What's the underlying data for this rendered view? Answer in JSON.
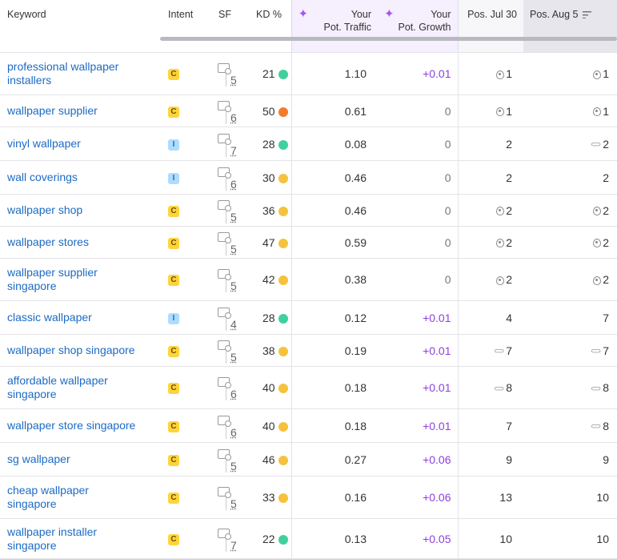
{
  "colors": {
    "easy": "#3fd19c",
    "medium": "#f5c33b",
    "hard": "#f47b2c",
    "link": "#1c6bc4",
    "growth": "#8e3ee0"
  },
  "headers": {
    "keyword": "Keyword",
    "intent": "Intent",
    "sf": "SF",
    "kd": "KD %",
    "traffic": [
      "Your",
      "Pot. Traffic"
    ],
    "growth": [
      "Your",
      "Pot. Growth"
    ],
    "pos1": "Pos. Jul 30",
    "pos2": "Pos. Aug 5"
  },
  "rows": [
    {
      "keyword": [
        "professional wallpaper",
        "installers"
      ],
      "intent": "C",
      "sf": "5",
      "kd": "21",
      "kdLevel": "easy",
      "traffic": "1.10",
      "growth": "+0.01",
      "pos1": "1",
      "pos1Icon": "pin",
      "pos2": "1",
      "pos2Icon": "pin"
    },
    {
      "keyword": [
        "wallpaper supplier"
      ],
      "intent": "C",
      "sf": "6",
      "kd": "50",
      "kdLevel": "hard",
      "traffic": "0.61",
      "growth": "0",
      "pos1": "1",
      "pos1Icon": "pin",
      "pos2": "1",
      "pos2Icon": "pin"
    },
    {
      "keyword": [
        "vinyl wallpaper"
      ],
      "intent": "I",
      "sf": "7",
      "kd": "28",
      "kdLevel": "easy",
      "traffic": "0.08",
      "growth": "0",
      "pos1": "2",
      "pos1Icon": "",
      "pos2": "2",
      "pos2Icon": "link"
    },
    {
      "keyword": [
        "wall coverings"
      ],
      "intent": "I",
      "sf": "6",
      "kd": "30",
      "kdLevel": "medium",
      "traffic": "0.46",
      "growth": "0",
      "pos1": "2",
      "pos1Icon": "",
      "pos2": "2",
      "pos2Icon": ""
    },
    {
      "keyword": [
        "wallpaper shop"
      ],
      "intent": "C",
      "sf": "5",
      "kd": "36",
      "kdLevel": "medium",
      "traffic": "0.46",
      "growth": "0",
      "pos1": "2",
      "pos1Icon": "pin",
      "pos2": "2",
      "pos2Icon": "pin"
    },
    {
      "keyword": [
        "wallpaper stores"
      ],
      "intent": "C",
      "sf": "5",
      "kd": "47",
      "kdLevel": "medium",
      "traffic": "0.59",
      "growth": "0",
      "pos1": "2",
      "pos1Icon": "pin",
      "pos2": "2",
      "pos2Icon": "pin"
    },
    {
      "keyword": [
        "wallpaper supplier",
        "singapore"
      ],
      "intent": "C",
      "sf": "5",
      "kd": "42",
      "kdLevel": "medium",
      "traffic": "0.38",
      "growth": "0",
      "pos1": "2",
      "pos1Icon": "pin",
      "pos2": "2",
      "pos2Icon": "pin"
    },
    {
      "keyword": [
        "classic wallpaper"
      ],
      "intent": "I",
      "sf": "4",
      "kd": "28",
      "kdLevel": "easy",
      "traffic": "0.12",
      "growth": "+0.01",
      "pos1": "4",
      "pos1Icon": "",
      "pos2": "7",
      "pos2Icon": ""
    },
    {
      "keyword": [
        "wallpaper shop singapore"
      ],
      "intent": "C",
      "sf": "5",
      "kd": "38",
      "kdLevel": "medium",
      "traffic": "0.19",
      "growth": "+0.01",
      "pos1": "7",
      "pos1Icon": "link",
      "pos2": "7",
      "pos2Icon": "link"
    },
    {
      "keyword": [
        "affordable wallpaper",
        "singapore"
      ],
      "intent": "C",
      "sf": "6",
      "kd": "40",
      "kdLevel": "medium",
      "traffic": "0.18",
      "growth": "+0.01",
      "pos1": "8",
      "pos1Icon": "link",
      "pos2": "8",
      "pos2Icon": "link"
    },
    {
      "keyword": [
        "wallpaper store singapore"
      ],
      "intent": "C",
      "sf": "6",
      "kd": "40",
      "kdLevel": "medium",
      "traffic": "0.18",
      "growth": "+0.01",
      "pos1": "7",
      "pos1Icon": "",
      "pos2": "8",
      "pos2Icon": "link"
    },
    {
      "keyword": [
        "sg wallpaper"
      ],
      "intent": "C",
      "sf": "5",
      "kd": "46",
      "kdLevel": "medium",
      "traffic": "0.27",
      "growth": "+0.06",
      "pos1": "9",
      "pos1Icon": "",
      "pos2": "9",
      "pos2Icon": ""
    },
    {
      "keyword": [
        "cheap wallpaper",
        "singapore"
      ],
      "intent": "C",
      "sf": "5",
      "kd": "33",
      "kdLevel": "medium",
      "traffic": "0.16",
      "growth": "+0.06",
      "pos1": "13",
      "pos1Icon": "",
      "pos2": "10",
      "pos2Icon": ""
    },
    {
      "keyword": [
        "wallpaper installer",
        "singapore"
      ],
      "intent": "C",
      "sf": "7",
      "kd": "22",
      "kdLevel": "easy",
      "traffic": "0.13",
      "growth": "+0.05",
      "pos1": "10",
      "pos1Icon": "",
      "pos2": "10",
      "pos2Icon": ""
    }
  ]
}
